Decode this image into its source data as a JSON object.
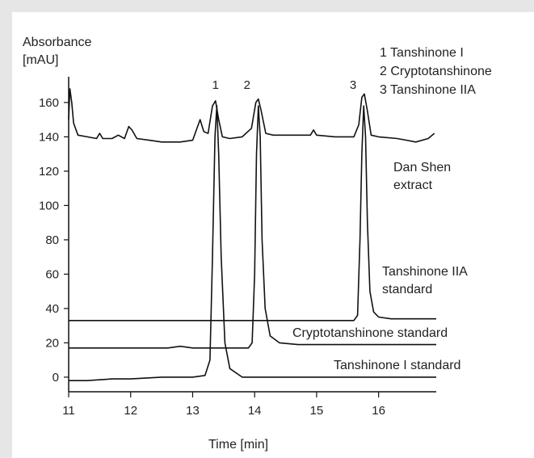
{
  "chart_data": {
    "type": "line",
    "y_label": "Absorbance",
    "y_unit": "[mAU]",
    "x_label": "Time [min]",
    "legend": [
      "1 Tanshinone I",
      "2 Cryptotanshinone",
      "3 Tanshinone IIA"
    ],
    "peak_labels": [
      {
        "label": "1",
        "x": 13.37
      },
      {
        "label": "2",
        "x": 14.06
      },
      {
        "label": "3",
        "x": 15.77
      }
    ],
    "xlim": [
      11,
      16.93
    ],
    "xticks": [
      11,
      12,
      13,
      14,
      15,
      16
    ],
    "ylim": [
      -8.5,
      175
    ],
    "yticks": [
      0,
      20,
      40,
      60,
      80,
      100,
      120,
      140,
      160
    ],
    "series": [
      {
        "name": "Dan Shen extract",
        "color": "#111111",
        "x": [
          11.0,
          11.02,
          11.05,
          11.08,
          11.15,
          11.3,
          11.45,
          11.5,
          11.55,
          11.7,
          11.8,
          11.9,
          11.97,
          12.02,
          12.1,
          12.3,
          12.5,
          12.8,
          13.0,
          13.08,
          13.12,
          13.18,
          13.25,
          13.32,
          13.37,
          13.42,
          13.48,
          13.6,
          13.8,
          13.95,
          14.02,
          14.06,
          14.1,
          14.18,
          14.3,
          14.6,
          14.9,
          14.95,
          15.0,
          15.3,
          15.6,
          15.68,
          15.73,
          15.77,
          15.82,
          15.88,
          16.0,
          16.3,
          16.6,
          16.8,
          16.9
        ],
        "values": [
          150,
          168,
          160,
          148,
          141,
          140,
          139,
          142,
          139,
          139,
          141,
          139,
          146,
          144,
          139,
          138,
          137,
          137,
          138,
          146,
          150,
          143,
          142,
          158,
          161,
          150,
          140,
          139,
          140,
          145,
          160,
          162,
          156,
          142,
          141,
          141,
          141,
          144,
          141,
          140,
          140,
          147,
          163,
          165,
          155,
          141,
          140,
          139,
          137,
          139,
          142
        ]
      },
      {
        "name": "Tanshinone IIA standard",
        "color": "#111111",
        "x": [
          11.0,
          15.6,
          15.66,
          15.7,
          15.73,
          15.76,
          15.79,
          15.82,
          15.86,
          15.92,
          16.0,
          16.2,
          16.93
        ],
        "values": [
          33,
          33,
          36,
          80,
          130,
          158,
          140,
          90,
          50,
          38,
          35,
          34,
          34
        ]
      },
      {
        "name": "Cryptotanshinone standard",
        "color": "#111111",
        "x": [
          11.0,
          12.6,
          12.8,
          13.0,
          13.9,
          13.96,
          14.0,
          14.03,
          14.06,
          14.09,
          14.12,
          14.17,
          14.25,
          14.4,
          14.7,
          16.93
        ],
        "values": [
          17,
          17,
          18,
          17,
          17,
          20,
          60,
          130,
          158,
          140,
          80,
          40,
          24,
          20,
          19,
          19
        ]
      },
      {
        "name": "Tanshinone I standard",
        "color": "#111111",
        "x": [
          11.0,
          11.3,
          11.7,
          12.0,
          12.5,
          13.0,
          13.2,
          13.28,
          13.32,
          13.36,
          13.39,
          13.42,
          13.46,
          13.52,
          13.6,
          13.8,
          14.5,
          16.93
        ],
        "values": [
          -2,
          -2,
          -1,
          -1,
          0,
          0,
          1,
          10,
          70,
          140,
          158,
          130,
          70,
          20,
          5,
          0,
          0,
          0
        ]
      }
    ]
  }
}
